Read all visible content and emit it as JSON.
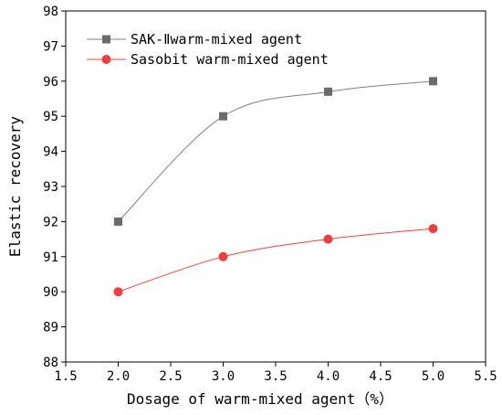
{
  "chart_data": {
    "type": "line",
    "title": "",
    "xlabel": "Dosage of warm-mixed agent（%）",
    "ylabel": "Elastic recovery",
    "xlim": [
      1.5,
      5.5
    ],
    "ylim": [
      88,
      98
    ],
    "x_ticks": [
      1.5,
      2.0,
      2.5,
      3.0,
      3.5,
      4.0,
      4.5,
      5.0,
      5.5
    ],
    "x_tick_labels": [
      "1.5",
      "2.0",
      "2.5",
      "3.0",
      "3.5",
      "4.0",
      "4.5",
      "5.0",
      "5.5"
    ],
    "y_ticks": [
      88,
      89,
      90,
      91,
      92,
      93,
      94,
      95,
      96,
      97,
      98
    ],
    "y_tick_labels": [
      "88",
      "89",
      "90",
      "91",
      "92",
      "93",
      "94",
      "95",
      "96",
      "97",
      "98"
    ],
    "grid": false,
    "legend_position": "top-left",
    "series": [
      {
        "name": "SAK-Ⅱwarm-mixed agent",
        "marker": "square",
        "color": "#808080",
        "marker_color": "#6b6b6b",
        "x": [
          2.0,
          3.0,
          4.0,
          5.0
        ],
        "values": [
          92.0,
          95.0,
          95.7,
          96.0
        ]
      },
      {
        "name": "Sasobit warm-mixed agent",
        "marker": "circle",
        "color": "#ff3b3b",
        "marker_color": "#f03c3c",
        "x": [
          2.0,
          3.0,
          4.0,
          5.0
        ],
        "values": [
          90.0,
          91.0,
          91.5,
          91.8
        ]
      }
    ]
  }
}
